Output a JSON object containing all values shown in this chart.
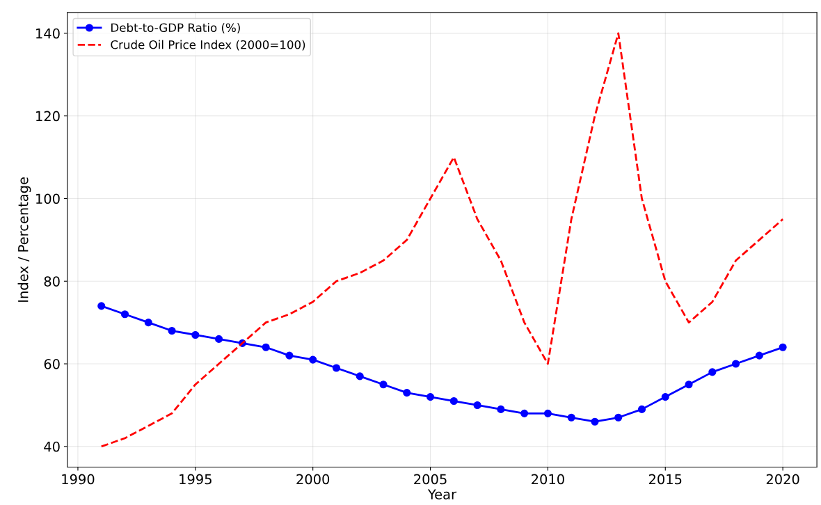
{
  "chart_data": {
    "type": "line",
    "xlabel": "Year",
    "ylabel": "Index / Percentage",
    "x": [
      1991,
      1992,
      1993,
      1994,
      1995,
      1996,
      1997,
      1998,
      1999,
      2000,
      2001,
      2002,
      2003,
      2004,
      2005,
      2006,
      2007,
      2008,
      2009,
      2010,
      2011,
      2012,
      2013,
      2014,
      2015,
      2016,
      2017,
      2018,
      2019,
      2020
    ],
    "series": [
      {
        "name": "Debt-to-GDP Ratio (%)",
        "color": "#0000ff",
        "marker": "circle",
        "line_style": "solid",
        "values": [
          74,
          72,
          70,
          68,
          67,
          66,
          65,
          64,
          62,
          61,
          59,
          57,
          55,
          53,
          52,
          51,
          50,
          49,
          48,
          48,
          47,
          46,
          47,
          49,
          52,
          55,
          58,
          60,
          62,
          64
        ]
      },
      {
        "name": "Crude Oil Price Index (2000=100)",
        "color": "#ff0000",
        "marker": "none",
        "line_style": "dashed",
        "values": [
          40,
          42,
          45,
          48,
          55,
          60,
          65,
          70,
          72,
          75,
          80,
          82,
          85,
          90,
          100,
          110,
          95,
          85,
          70,
          60,
          95,
          120,
          140,
          100,
          80,
          70,
          75,
          85,
          90,
          95
        ]
      }
    ],
    "xlim": [
      1989.55,
      2021.45
    ],
    "xticks": [
      1990,
      1995,
      2000,
      2005,
      2010,
      2015,
      2020
    ],
    "ylim": [
      35,
      145
    ],
    "yticks": [
      40,
      60,
      80,
      100,
      120,
      140
    ],
    "grid": true,
    "legend": "top left"
  }
}
